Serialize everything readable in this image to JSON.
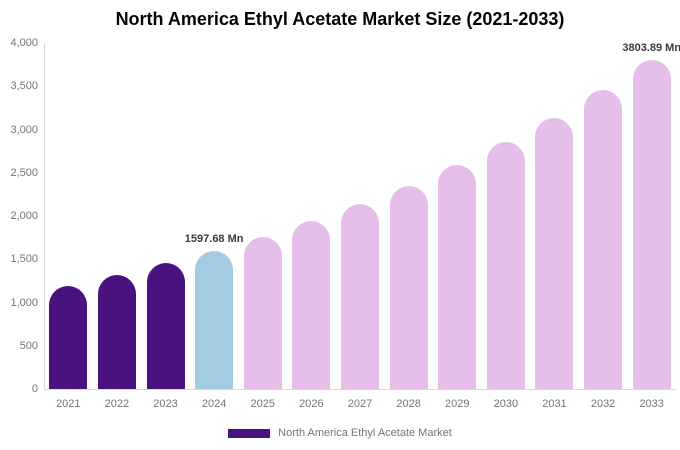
{
  "title": "North America Ethyl Acetate Market Size (2021-2033)",
  "legend": {
    "label": "North America Ethyl Acetate Market",
    "swatch_color": "#4a127f"
  },
  "colors": {
    "historical": "#4a127f",
    "base_year": "#a3cbe1",
    "forecast": "#e5bfe9",
    "axis_text": "#757575",
    "axis_line": "#d9d9d9",
    "data_label": "#3a3a3a",
    "title_text": "#050505"
  },
  "chart_data": {
    "type": "bar",
    "title": "North America Ethyl Acetate Market Size (2021-2033)",
    "xlabel": "",
    "ylabel": "",
    "unit": "Mn",
    "categories": [
      "2021",
      "2022",
      "2023",
      "2024",
      "2025",
      "2026",
      "2027",
      "2028",
      "2029",
      "2030",
      "2031",
      "2032",
      "2033"
    ],
    "values": [
      1196,
      1318,
      1451,
      1597.68,
      1760,
      1938,
      2134,
      2350,
      2588,
      2850,
      3138,
      3455,
      3803.89
    ],
    "bar_roles": [
      "historical",
      "historical",
      "historical",
      "base_year",
      "forecast",
      "forecast",
      "forecast",
      "forecast",
      "forecast",
      "forecast",
      "forecast",
      "forecast",
      "forecast"
    ],
    "ylim": [
      0,
      4000
    ],
    "y_ticks": [
      {
        "value": 0,
        "label": "0"
      },
      {
        "value": 500,
        "label": "500"
      },
      {
        "value": 1000,
        "label": "1,000"
      },
      {
        "value": 1500,
        "label": "1,500"
      },
      {
        "value": 2000,
        "label": "2,000"
      },
      {
        "value": 2500,
        "label": "2,500"
      },
      {
        "value": 3000,
        "label": "3,000"
      },
      {
        "value": 3500,
        "label": "3,500"
      },
      {
        "value": 4000,
        "label": "4,000"
      }
    ],
    "annotations": [
      {
        "category": "2024",
        "text": "1597.68 Mn"
      },
      {
        "category": "2033",
        "text": "3803.89 Mn"
      }
    ],
    "grid": false,
    "legend_position": "bottom",
    "legend_entries": [
      "North America Ethyl Acetate Market"
    ]
  }
}
